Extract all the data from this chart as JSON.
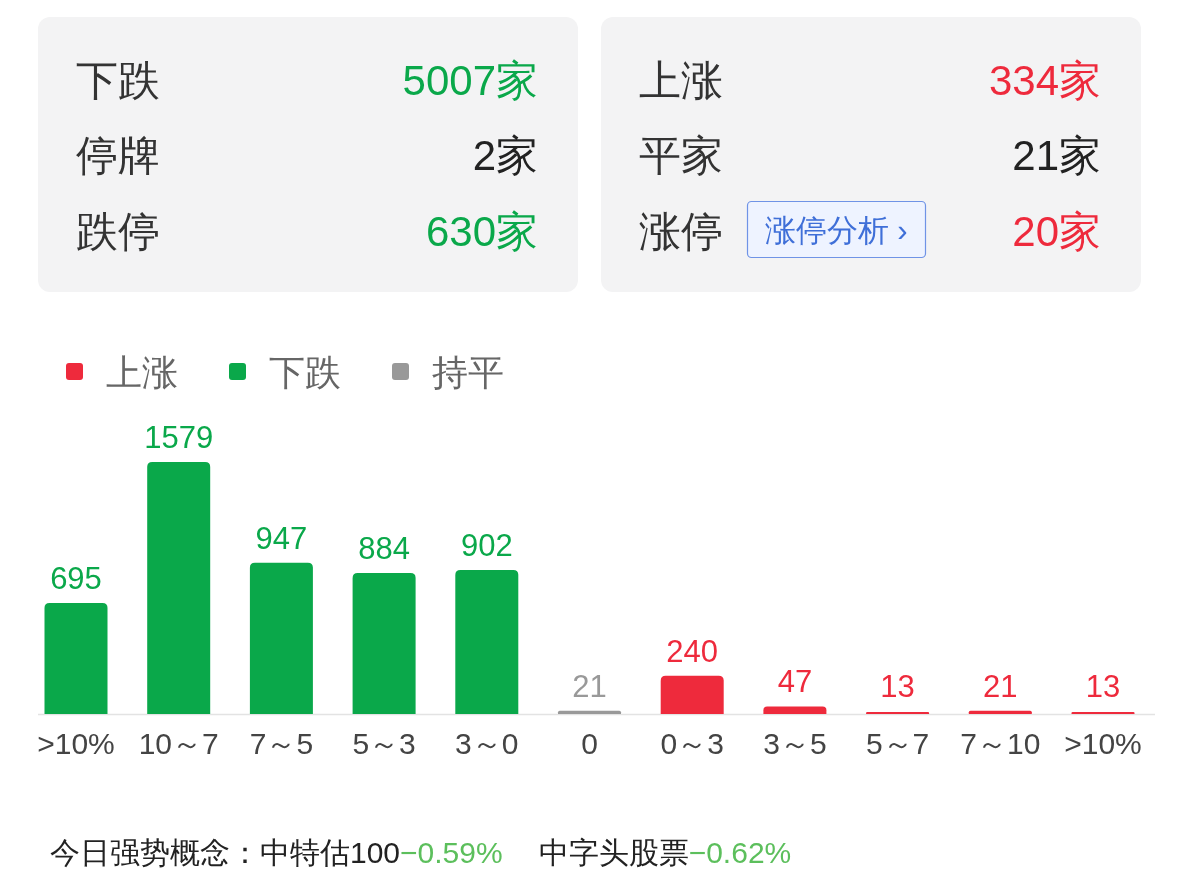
{
  "chart_data": [
    {
      "type": "other",
      "annotations": [
        "下跌",
        "5007家",
        "停牌",
        "2家",
        "跌停",
        "630家",
        "上涨",
        "334家",
        "平家",
        "21家",
        "涨停",
        "涨停分析 ›",
        "20家"
      ],
      "colors": [
        "#333333",
        "#0aa84a",
        "#333333",
        "#222222",
        "#333333",
        "#0aa84a",
        "#333333",
        "#ee2a3c",
        "#333333",
        "#222222",
        "#333333",
        "#3f6fd8",
        "#ee2a3c"
      ]
    },
    {
      "type": "bar",
      "categories": [
        ">10%",
        "10～7",
        "7～5",
        "5～3",
        "3～0",
        "0",
        "0～3",
        "3～5",
        "5～7",
        "7～10",
        ">10%"
      ],
      "series": [
        {
          "name": "上涨",
          "color": "#ee2a3c",
          "values": [
            null,
            null,
            null,
            null,
            null,
            null,
            240,
            47,
            13,
            21,
            13
          ]
        },
        {
          "name": "下跌",
          "color": "#0aa84a",
          "values": [
            695,
            1579,
            947,
            884,
            902,
            null,
            null,
            null,
            null,
            null,
            null
          ]
        },
        {
          "name": "持平",
          "color": "#999999",
          "values": [
            null,
            null,
            null,
            null,
            null,
            21,
            null,
            null,
            null,
            null,
            null
          ]
        }
      ],
      "data_labels": true,
      "legend": "top left",
      "tick_labels": "x",
      "annotations": [
        "今日强势概念：中特估100",
        "−0.59%",
        "中字头股票",
        "−0.62%"
      ]
    }
  ]
}
